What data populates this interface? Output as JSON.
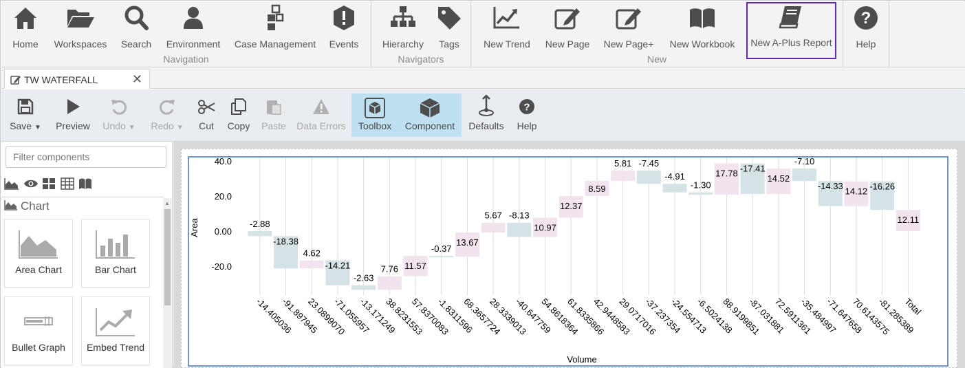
{
  "ribbon": {
    "groups": [
      {
        "title": "Navigation",
        "items": [
          "Home",
          "Workspaces",
          "Search",
          "Environment",
          "Case Management",
          "Events"
        ]
      },
      {
        "title": "Navigators",
        "items": [
          "Hierarchy",
          "Tags"
        ]
      },
      {
        "title": "New",
        "items": [
          "New Trend",
          "New Page",
          "New Page+",
          "New Workbook",
          "New A-Plus Report"
        ]
      },
      {
        "title": "",
        "items": [
          "Help"
        ]
      }
    ],
    "active_item": "New A-Plus Report"
  },
  "tab": {
    "label": "TW WATERFALL",
    "close": "✕"
  },
  "toolbar": {
    "items": [
      {
        "label": "Save",
        "icon": "save-icon",
        "dropdown": true,
        "enabled": true
      },
      {
        "label": "Preview",
        "icon": "play-icon",
        "enabled": true
      },
      {
        "label": "Undo",
        "icon": "undo-icon",
        "dropdown": true,
        "enabled": false
      },
      {
        "label": "Redo",
        "icon": "redo-icon",
        "dropdown": true,
        "enabled": false
      },
      {
        "label": "Cut",
        "icon": "scissors-icon",
        "enabled": true
      },
      {
        "label": "Copy",
        "icon": "copy-icon",
        "enabled": true
      },
      {
        "label": "Paste",
        "icon": "paste-icon",
        "enabled": false
      },
      {
        "label": "Data Errors",
        "icon": "warning-icon",
        "enabled": false
      },
      {
        "label": "Toolbox",
        "icon": "toolbox-icon",
        "enabled": true,
        "selected": true
      },
      {
        "label": "Component",
        "icon": "cube-icon",
        "enabled": true,
        "selected": true
      },
      {
        "label": "Defaults",
        "icon": "defaults-icon",
        "enabled": true
      },
      {
        "label": "Help",
        "icon": "help-icon",
        "enabled": true
      }
    ]
  },
  "left_panel": {
    "filter_placeholder": "Filter components",
    "category": "Chart",
    "components": [
      "Area Chart",
      "Bar Chart",
      "Bullet Graph",
      "Embed Trend"
    ]
  },
  "colors": {
    "accent": "#5b2bb5",
    "selected_tool_bg": "#bfe0f1",
    "increase_bar": "#f2e4ee",
    "decrease_bar": "#d6e3e6",
    "chart_border": "#6f96d9"
  },
  "chart_data": {
    "type": "waterfall",
    "xlabel": "Volume",
    "ylabel": "Area",
    "ylim": [
      -32,
      40
    ],
    "yticks": [
      "40.0",
      "20.0",
      "0.00",
      "-20.0"
    ],
    "categories": [
      "-14.405036",
      "-91.897945",
      "23.0899070",
      "-71.055957",
      "-13.171249",
      "38.8231553",
      "57.8370083",
      "-1.8311596",
      "68.3657724",
      "28.3339013",
      "-40.647759",
      "54.8618364",
      "61.8335866",
      "42.9448583",
      "29.0717016",
      "-37.237354",
      "-24.554713",
      "-6.5024138",
      "88.9199851",
      "-87.031881",
      "72.5911361",
      "-35.484997",
      "-71.647658",
      "70.6143575",
      "-81.285389",
      "Total"
    ],
    "values": [
      -2.88,
      -18.38,
      4.62,
      -14.21,
      -2.63,
      7.76,
      11.57,
      -0.37,
      13.67,
      5.67,
      -8.13,
      10.97,
      12.37,
      8.59,
      5.81,
      -7.45,
      -4.91,
      -1.3,
      17.78,
      -17.41,
      14.52,
      -7.1,
      -14.33,
      14.12,
      -16.26,
      12.11
    ],
    "labels": [
      "-2.88",
      "-18.38",
      "4.62",
      "-14.21",
      "-2.63",
      "7.76",
      "11.57",
      "-0.37",
      "13.67",
      "5.67",
      "-8.13",
      "10.97",
      "12.37",
      "8.59",
      "5.81",
      "-7.45",
      "-4.91",
      "-1.30",
      "17.78",
      "-17.41",
      "14.52",
      "-7.10",
      "-14.33",
      "14.12",
      "-16.26",
      "12.11"
    ]
  }
}
